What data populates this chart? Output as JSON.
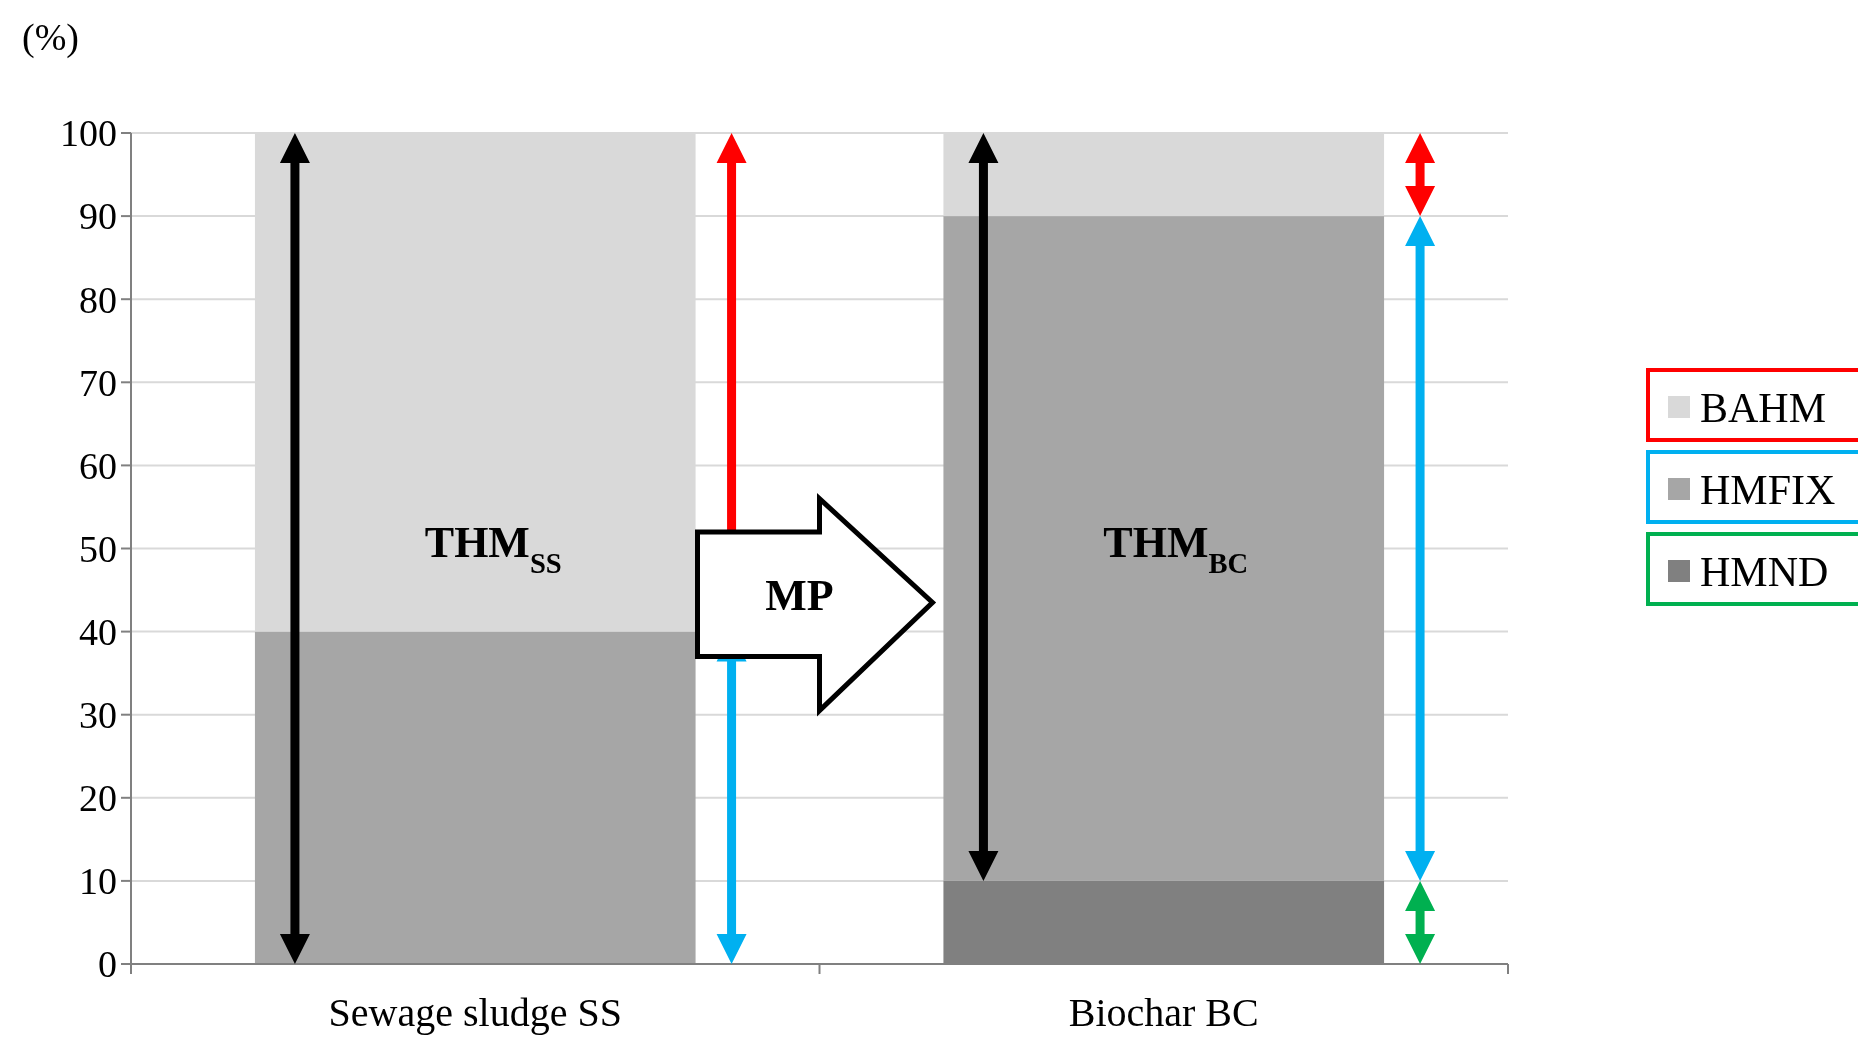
{
  "chart_data": {
    "type": "bar",
    "stacked": true,
    "ylabel": "(%)",
    "categories": [
      "Sewage sludge SS",
      "Biochar BC"
    ],
    "series": [
      {
        "name": "HMND",
        "color": "#808080",
        "values": [
          0,
          10
        ]
      },
      {
        "name": "HMFIX",
        "color": "#a6a6a6",
        "values": [
          40,
          80
        ]
      },
      {
        "name": "BAHM",
        "color": "#d9d9d9",
        "values": [
          60,
          10
        ]
      }
    ],
    "ylim": [
      0,
      100
    ],
    "yticks": [
      0,
      10,
      20,
      30,
      40,
      50,
      60,
      70,
      80,
      90,
      100
    ],
    "grid": "y",
    "legend": "right",
    "annotations": [
      "THM$_{SS}$",
      "MP",
      "THM$_{BC}$"
    ]
  }
}
